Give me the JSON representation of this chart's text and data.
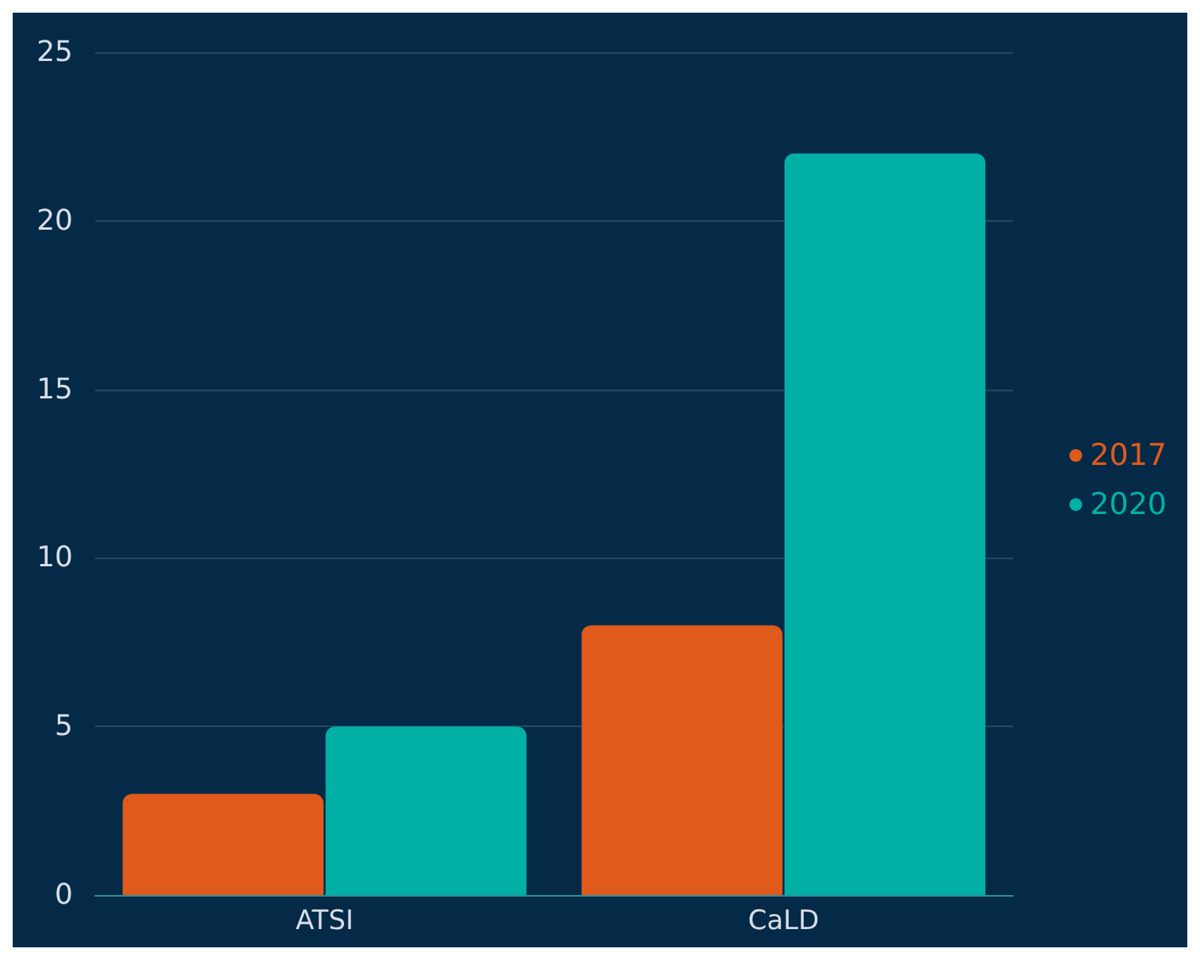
{
  "chart_data": {
    "type": "bar",
    "categories": [
      "ATSI",
      "CaLD"
    ],
    "series": [
      {
        "name": "2017",
        "color": "#e05a1b",
        "values": [
          3,
          8
        ]
      },
      {
        "name": "2020",
        "color": "#00b0a5",
        "values": [
          5,
          22
        ]
      }
    ],
    "ylim": [
      0,
      25
    ],
    "yticks": [
      0,
      5,
      10,
      15,
      20,
      25
    ],
    "grid": "y",
    "legend": "right"
  }
}
